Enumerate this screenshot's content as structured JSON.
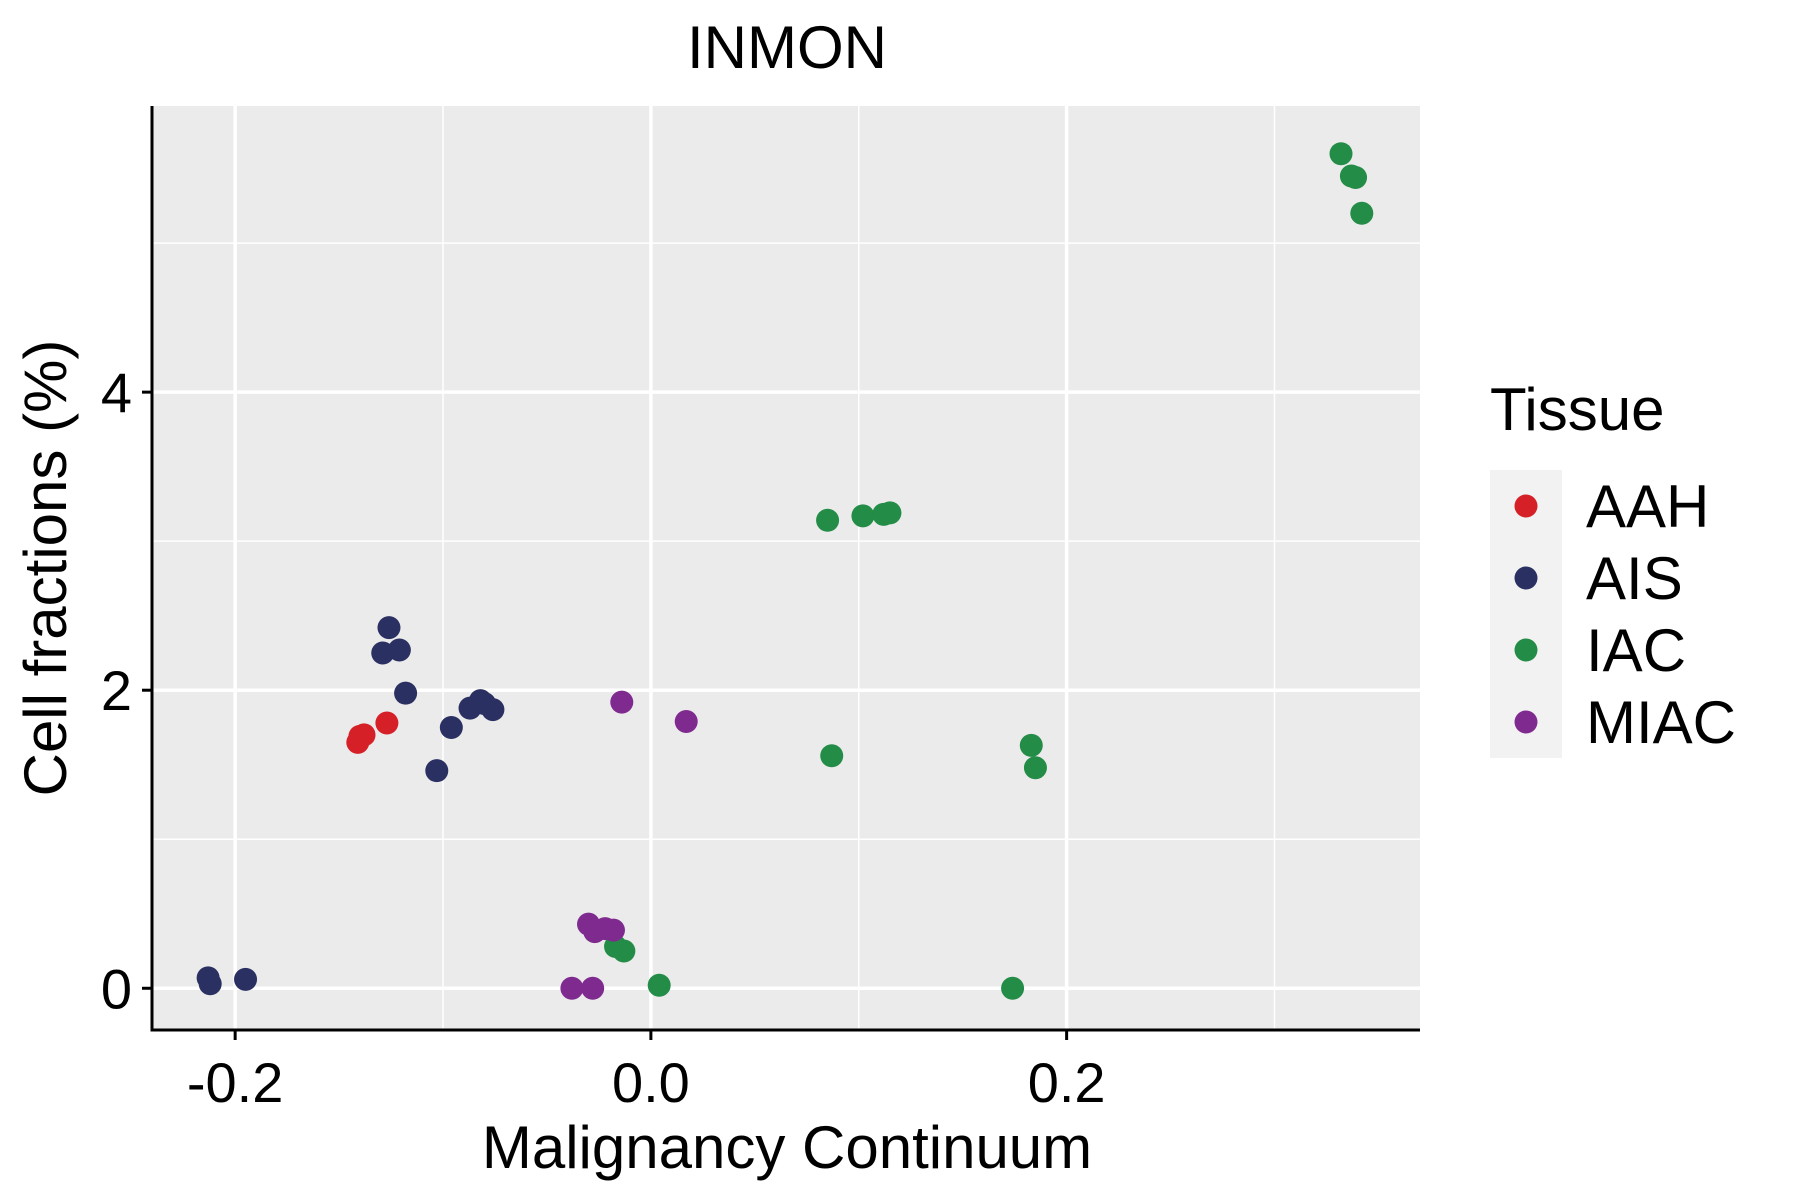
{
  "chart_data": {
    "type": "scatter",
    "title": "INMON",
    "xlabel": "Malignancy Continuum",
    "ylabel": "Cell fractions (%)",
    "xlim": [
      -0.24,
      0.37
    ],
    "ylim": [
      -0.28,
      5.92
    ],
    "xticks": [
      -0.2,
      0.0,
      0.2
    ],
    "xtick_labels": [
      "-0.2",
      "0.0",
      "0.2"
    ],
    "yticks": [
      0,
      2,
      4
    ],
    "ytick_labels": [
      "0",
      "2",
      "4"
    ],
    "x_minor_gridlines": [
      -0.1,
      0.1,
      0.3
    ],
    "y_minor_gridlines": [
      1,
      3,
      5
    ],
    "grid": true,
    "legend": {
      "title": "Tissue",
      "position": "right"
    },
    "series": [
      {
        "name": "AAH",
        "color": "#D62027",
        "points": [
          {
            "x": -0.141,
            "y": 1.65
          },
          {
            "x": -0.14,
            "y": 1.69
          },
          {
            "x": -0.138,
            "y": 1.7
          },
          {
            "x": -0.127,
            "y": 1.78
          }
        ]
      },
      {
        "name": "AIS",
        "color": "#2A3061",
        "points": [
          {
            "x": -0.213,
            "y": 0.07
          },
          {
            "x": -0.212,
            "y": 0.03
          },
          {
            "x": -0.195,
            "y": 0.06
          },
          {
            "x": -0.126,
            "y": 2.42
          },
          {
            "x": -0.129,
            "y": 2.25
          },
          {
            "x": -0.121,
            "y": 2.27
          },
          {
            "x": -0.118,
            "y": 1.98
          },
          {
            "x": -0.103,
            "y": 1.46
          },
          {
            "x": -0.096,
            "y": 1.75
          },
          {
            "x": -0.087,
            "y": 1.88
          },
          {
            "x": -0.082,
            "y": 1.93
          },
          {
            "x": -0.08,
            "y": 1.91
          },
          {
            "x": -0.076,
            "y": 1.87
          }
        ]
      },
      {
        "name": "IAC",
        "color": "#238C47",
        "points": [
          {
            "x": 0.332,
            "y": 5.6
          },
          {
            "x": 0.337,
            "y": 5.45
          },
          {
            "x": 0.339,
            "y": 5.44
          },
          {
            "x": 0.342,
            "y": 5.2
          },
          {
            "x": 0.085,
            "y": 3.14
          },
          {
            "x": 0.102,
            "y": 3.17
          },
          {
            "x": 0.112,
            "y": 3.18
          },
          {
            "x": 0.115,
            "y": 3.19
          },
          {
            "x": 0.087,
            "y": 1.56
          },
          {
            "x": 0.183,
            "y": 1.63
          },
          {
            "x": 0.185,
            "y": 1.48
          },
          {
            "x": -0.017,
            "y": 0.28
          },
          {
            "x": -0.013,
            "y": 0.25
          },
          {
            "x": 0.004,
            "y": 0.02
          },
          {
            "x": 0.174,
            "y": 0.0
          }
        ]
      },
      {
        "name": "MIAC",
        "color": "#7F2A8F",
        "points": [
          {
            "x": -0.014,
            "y": 1.92
          },
          {
            "x": 0.017,
            "y": 1.79
          },
          {
            "x": -0.03,
            "y": 0.43
          },
          {
            "x": -0.027,
            "y": 0.38
          },
          {
            "x": -0.022,
            "y": 0.4
          },
          {
            "x": -0.018,
            "y": 0.39
          },
          {
            "x": -0.038,
            "y": 0.0
          },
          {
            "x": -0.028,
            "y": 0.0
          }
        ]
      }
    ]
  }
}
